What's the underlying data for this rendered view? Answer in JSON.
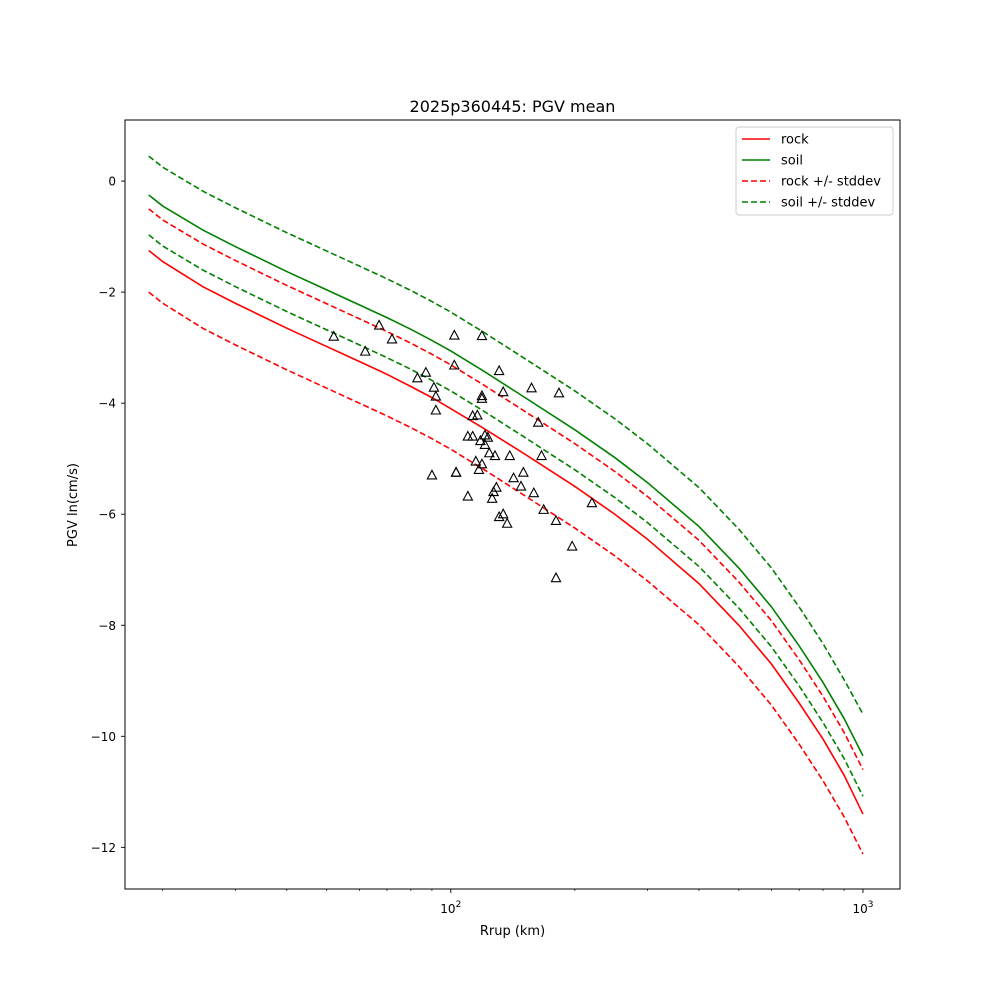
{
  "chart_data": {
    "type": "line",
    "title": "2025p360445: PGV mean",
    "xlabel": "Rrup (km)",
    "ylabel": "PGV ln(cm/s)",
    "xscale": "log",
    "xlim": [
      16.2,
      1230
    ],
    "ylim": [
      -12.75,
      1.1
    ],
    "grid": false,
    "legend_position": "top-right",
    "xticks": [
      {
        "value": 100,
        "base": "10",
        "exp": "2"
      },
      {
        "value": 1000,
        "base": "10",
        "exp": "3"
      }
    ],
    "yticks": [
      {
        "value": 0,
        "label": "0"
      },
      {
        "value": -2,
        "label": "−2"
      },
      {
        "value": -4,
        "label": "−4"
      },
      {
        "value": -6,
        "label": "−6"
      },
      {
        "value": -8,
        "label": "−8"
      },
      {
        "value": -10,
        "label": "−10"
      },
      {
        "value": -12,
        "label": "−12"
      }
    ],
    "series": [
      {
        "name": "rock",
        "color": "#ff0000",
        "dash": false,
        "x": [
          18.5,
          20,
          25,
          30,
          40,
          50,
          60,
          70,
          80,
          90,
          100,
          120,
          150,
          200,
          250,
          300,
          400,
          500,
          600,
          700,
          800,
          900,
          1000
        ],
        "y": [
          -1.25,
          -1.45,
          -1.9,
          -2.2,
          -2.65,
          -2.98,
          -3.25,
          -3.48,
          -3.7,
          -3.9,
          -4.1,
          -4.45,
          -4.9,
          -5.5,
          -6.0,
          -6.45,
          -7.25,
          -8.0,
          -8.7,
          -9.4,
          -10.05,
          -10.7,
          -11.4
        ]
      },
      {
        "name": "soil",
        "color": "#008000",
        "dash": false,
        "x": [
          18.5,
          20,
          25,
          30,
          40,
          50,
          60,
          70,
          80,
          90,
          100,
          120,
          150,
          200,
          250,
          300,
          400,
          500,
          600,
          700,
          800,
          900,
          1000
        ],
        "y": [
          -0.25,
          -0.45,
          -0.88,
          -1.18,
          -1.63,
          -1.96,
          -2.23,
          -2.46,
          -2.67,
          -2.87,
          -3.06,
          -3.42,
          -3.88,
          -4.48,
          -4.98,
          -5.43,
          -6.22,
          -6.97,
          -7.67,
          -8.37,
          -9.03,
          -9.68,
          -10.35
        ]
      },
      {
        "name": "rock +/- stddev",
        "color": "#ff0000",
        "dash": true,
        "x": [
          18.5,
          20,
          25,
          30,
          40,
          50,
          60,
          70,
          80,
          90,
          100,
          120,
          150,
          200,
          250,
          300,
          400,
          500,
          600,
          700,
          800,
          900,
          1000
        ],
        "y": [
          -0.5,
          -0.7,
          -1.13,
          -1.43,
          -1.88,
          -2.21,
          -2.48,
          -2.71,
          -2.92,
          -3.12,
          -3.31,
          -3.67,
          -4.13,
          -4.73,
          -5.23,
          -5.68,
          -6.47,
          -7.22,
          -7.92,
          -8.62,
          -9.28,
          -9.93,
          -10.6
        ]
      },
      {
        "name": "rock +/- stddev lower",
        "color": "#ff0000",
        "dash": true,
        "x": [
          18.5,
          20,
          25,
          30,
          40,
          50,
          60,
          70,
          80,
          90,
          100,
          120,
          150,
          200,
          250,
          300,
          400,
          500,
          600,
          700,
          800,
          900,
          1000
        ],
        "y": [
          -2.0,
          -2.2,
          -2.65,
          -2.95,
          -3.4,
          -3.73,
          -4.0,
          -4.23,
          -4.44,
          -4.64,
          -4.83,
          -5.19,
          -5.65,
          -6.25,
          -6.75,
          -7.2,
          -7.99,
          -8.74,
          -9.44,
          -10.14,
          -10.8,
          -11.45,
          -12.12
        ]
      },
      {
        "name": "soil +/- stddev",
        "color": "#008000",
        "dash": true,
        "x": [
          18.5,
          20,
          25,
          30,
          40,
          50,
          60,
          70,
          80,
          90,
          100,
          120,
          150,
          200,
          250,
          300,
          400,
          500,
          600,
          700,
          800,
          900,
          1000
        ],
        "y": [
          0.45,
          0.25,
          -0.18,
          -0.48,
          -0.93,
          -1.26,
          -1.53,
          -1.76,
          -1.97,
          -2.17,
          -2.36,
          -2.72,
          -3.18,
          -3.78,
          -4.28,
          -4.73,
          -5.52,
          -6.27,
          -6.97,
          -7.67,
          -8.33,
          -8.98,
          -9.6
        ]
      },
      {
        "name": "soil +/- stddev lower",
        "color": "#008000",
        "dash": true,
        "x": [
          18.5,
          20,
          25,
          30,
          40,
          50,
          60,
          70,
          80,
          90,
          100,
          120,
          150,
          200,
          250,
          300,
          400,
          500,
          600,
          700,
          800,
          900,
          1000
        ],
        "y": [
          -0.97,
          -1.17,
          -1.6,
          -1.9,
          -2.35,
          -2.68,
          -2.95,
          -3.18,
          -3.39,
          -3.59,
          -3.78,
          -4.14,
          -4.6,
          -5.2,
          -5.7,
          -6.15,
          -6.94,
          -7.69,
          -8.39,
          -9.09,
          -9.75,
          -10.4,
          -11.08
        ]
      }
    ],
    "scatter": {
      "marker": "triangle",
      "color": "#000000",
      "x": [
        52,
        67,
        72,
        62,
        83,
        87,
        91,
        92,
        92,
        102,
        102,
        103,
        119,
        119,
        119,
        121,
        131,
        134,
        137,
        157,
        163,
        183,
        90,
        103,
        110,
        110,
        113,
        113,
        115,
        116,
        117,
        118,
        119,
        121,
        123,
        124,
        126,
        127,
        128,
        129,
        131,
        134,
        139,
        142,
        148,
        150,
        159,
        166,
        168,
        180,
        180,
        197,
        220
      ],
      "y": [
        -2.8,
        -2.6,
        -2.85,
        -3.07,
        -3.55,
        -3.45,
        -3.72,
        -3.88,
        -4.13,
        -2.78,
        -3.32,
        -5.25,
        -2.79,
        -3.87,
        -3.92,
        -4.58,
        -3.42,
        -3.8,
        -6.17,
        -3.73,
        -4.35,
        -3.82,
        -5.3,
        -5.25,
        -5.68,
        -4.6,
        -4.23,
        -4.6,
        -5.05,
        -4.22,
        -5.2,
        -4.68,
        -5.1,
        -4.75,
        -4.62,
        -4.9,
        -5.72,
        -5.6,
        -4.95,
        -5.52,
        -6.05,
        -6.0,
        -4.95,
        -5.35,
        -5.5,
        -5.25,
        -5.62,
        -4.95,
        -5.92,
        -7.15,
        -6.12,
        -6.58,
        -5.8
      ]
    }
  },
  "legend": [
    {
      "label": "rock",
      "color": "#ff0000",
      "dash": false
    },
    {
      "label": "soil",
      "color": "#008000",
      "dash": false
    },
    {
      "label": "rock +/- stddev",
      "color": "#ff0000",
      "dash": true
    },
    {
      "label": "soil +/- stddev",
      "color": "#008000",
      "dash": true
    }
  ]
}
